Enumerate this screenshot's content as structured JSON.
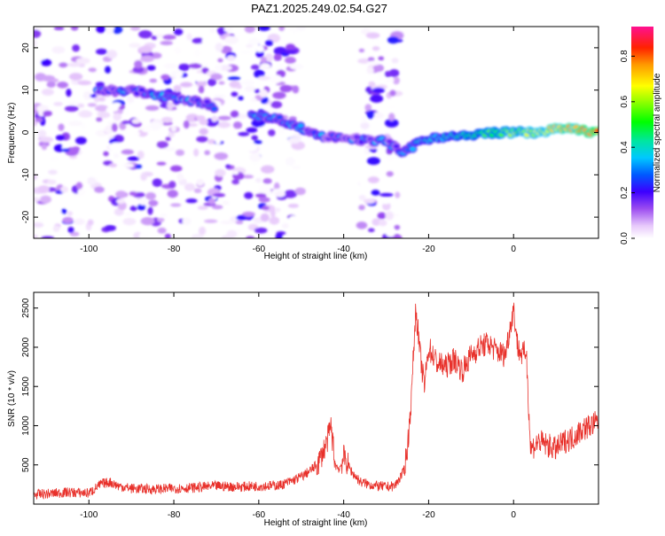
{
  "title": "PAZ1.2025.249.02.54.G27",
  "colors": {
    "snr_line": "#e8302a",
    "axis": "#000000"
  },
  "chart_data": [
    {
      "type": "heatmap",
      "xlabel": "Height of straight line (km)",
      "ylabel": "Frequency (Hz)",
      "xlim": [
        -113,
        20
      ],
      "ylim": [
        -25,
        25
      ],
      "x_ticks": [
        "-100",
        "-80",
        "-60",
        "-40",
        "-20",
        "0"
      ],
      "y_ticks": [
        "20",
        "10",
        "0",
        "-10",
        "-20"
      ],
      "ridge": [
        {
          "x": -97,
          "y": 10
        },
        {
          "x": -90,
          "y": 10
        },
        {
          "x": -85,
          "y": 9
        },
        {
          "x": -80,
          "y": 8
        },
        {
          "x": -73,
          "y": 7
        },
        {
          "x": -67,
          "y": 5
        },
        {
          "x": -60,
          "y": 4
        },
        {
          "x": -55,
          "y": 3
        },
        {
          "x": -50,
          "y": 1
        },
        {
          "x": -45,
          "y": -1
        },
        {
          "x": -40,
          "y": -1
        },
        {
          "x": -35,
          "y": -2
        },
        {
          "x": -30,
          "y": -2
        },
        {
          "x": -26,
          "y": -5
        },
        {
          "x": -22,
          "y": -2
        },
        {
          "x": -18,
          "y": -1
        },
        {
          "x": -12,
          "y": -1
        },
        {
          "x": -5,
          "y": 0
        },
        {
          "x": 0,
          "y": 0
        },
        {
          "x": 5,
          "y": 0
        },
        {
          "x": 12,
          "y": 1
        },
        {
          "x": 20,
          "y": 0
        }
      ],
      "colorbar": {
        "label": "Normalized spectral amplitude",
        "range": [
          0,
          0.93
        ],
        "ticks": [
          "0.0",
          "0.2",
          "0.4",
          "0.6",
          "0.8"
        ]
      }
    },
    {
      "type": "line",
      "xlabel": "Height of straight line (km)",
      "ylabel": "SNR (10 * v/v)",
      "xlim": [
        -113,
        20
      ],
      "ylim": [
        0,
        2700
      ],
      "x_ticks": [
        "-100",
        "-80",
        "-60",
        "-40",
        "-20",
        "0"
      ],
      "y_ticks": [
        "2500",
        "2000",
        "1500",
        "1000",
        "500"
      ],
      "series": [
        {
          "x": [
            -113,
            -110,
            -105,
            -100,
            -97,
            -95,
            -93,
            -90,
            -85,
            -80,
            -75,
            -70,
            -65,
            -60,
            -55,
            -52,
            -50,
            -48,
            -46,
            -44,
            -43,
            -42,
            -41,
            -40,
            -38,
            -36,
            -34,
            -32,
            -30,
            -28,
            -26,
            -25,
            -24,
            -23.5,
            -23,
            -22,
            -21,
            -20,
            -18,
            -16,
            -14,
            -12,
            -10,
            -8,
            -6,
            -4,
            -2,
            0,
            1,
            2,
            3,
            4,
            6,
            8,
            10,
            12,
            14,
            16,
            18,
            20
          ],
          "values": [
            120,
            130,
            150,
            140,
            260,
            280,
            230,
            200,
            190,
            200,
            210,
            230,
            220,
            230,
            240,
            300,
            350,
            420,
            520,
            780,
            1000,
            500,
            450,
            600,
            400,
            280,
            250,
            230,
            220,
            230,
            400,
            700,
            1400,
            2000,
            2500,
            1900,
            1500,
            2000,
            1800,
            1750,
            1850,
            1700,
            1900,
            2000,
            2050,
            1950,
            1900,
            2500,
            2000,
            1900,
            1950,
            700,
            800,
            750,
            700,
            800,
            850,
            950,
            1000,
            1050
          ]
        }
      ]
    }
  ]
}
